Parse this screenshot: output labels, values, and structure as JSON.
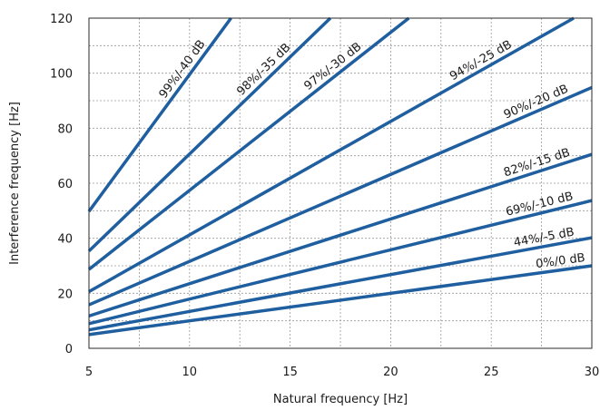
{
  "chart_data": {
    "type": "line",
    "xlabel": "Natural frequency [Hz]",
    "ylabel": "Interference frequency [Hz]",
    "xlim": [
      5,
      30
    ],
    "ylim": [
      0,
      120
    ],
    "xticks": [
      5,
      10,
      15,
      20,
      25,
      30
    ],
    "yticks": [
      0,
      20,
      40,
      60,
      80,
      100,
      120
    ],
    "grid": true,
    "line_color": "#1f5fa0",
    "series": [
      {
        "name": "0%/0 dB",
        "ratio": 1.0,
        "x": [
          5,
          30
        ],
        "y": [
          5,
          30
        ],
        "label_at_x": 28.5
      },
      {
        "name": "44%/-5 dB",
        "ratio": 1.34,
        "x": [
          5,
          30
        ],
        "y": [
          6.7,
          40.2
        ],
        "label_at_x": 27.7
      },
      {
        "name": "69%/-10 dB",
        "ratio": 1.79,
        "x": [
          5,
          30
        ],
        "y": [
          8.95,
          53.7
        ],
        "label_at_x": 27.5
      },
      {
        "name": "82%/-15 dB",
        "ratio": 2.35,
        "x": [
          5,
          30
        ],
        "y": [
          11.75,
          70.5
        ],
        "label_at_x": 27.4
      },
      {
        "name": "90%/-20 dB",
        "ratio": 3.16,
        "x": [
          5,
          30
        ],
        "y": [
          15.8,
          94.8
        ],
        "label_at_x": 27.4
      },
      {
        "name": "94%/-25 dB",
        "ratio": 4.12,
        "x": [
          5,
          29.1
        ],
        "y": [
          20.6,
          120
        ],
        "label_at_x": 24.7
      },
      {
        "name": "97%/-30 dB",
        "ratio": 5.74,
        "x": [
          5,
          20.9
        ],
        "y": [
          28.7,
          120
        ],
        "label_at_x": 17.4
      },
      {
        "name": "98%/-35 dB",
        "ratio": 7.07,
        "x": [
          5,
          17.0
        ],
        "y": [
          35.35,
          120
        ],
        "label_at_x": 14.0
      },
      {
        "name": "99%/-40 dB",
        "ratio": 9.95,
        "x": [
          5,
          12.06
        ],
        "y": [
          49.75,
          120
        ],
        "label_at_x": 10.0
      }
    ]
  }
}
